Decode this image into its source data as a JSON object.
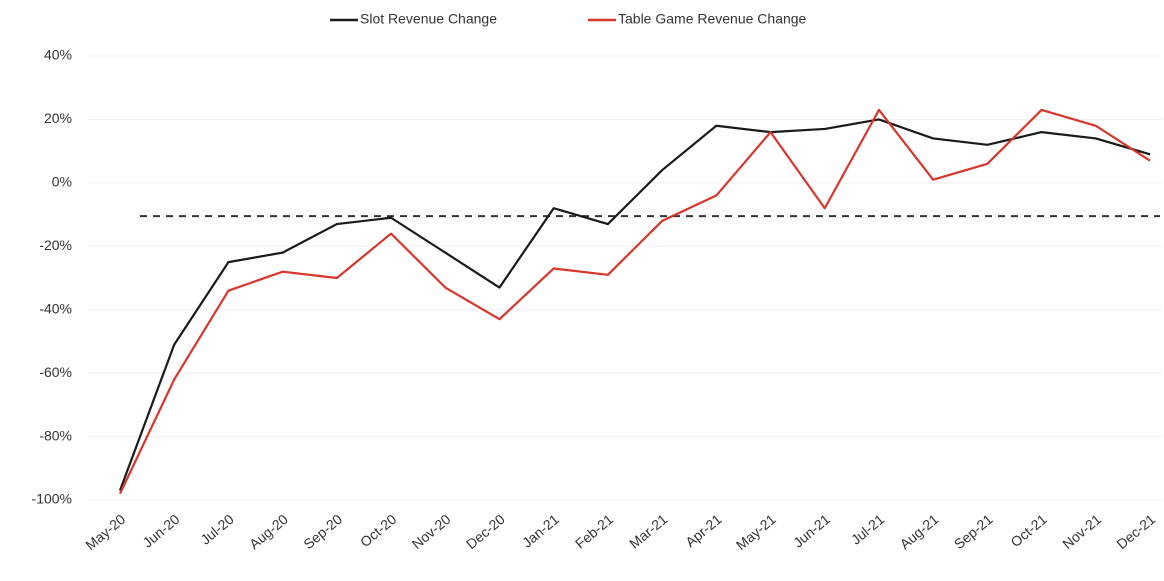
{
  "chart_data": {
    "type": "line",
    "categories": [
      "May-20",
      "Jun-20",
      "Jul-20",
      "Aug-20",
      "Sep-20",
      "Oct-20",
      "Nov-20",
      "Dec-20",
      "Jan-21",
      "Feb-21",
      "Mar-21",
      "Apr-21",
      "May-21",
      "Jun-21",
      "Jul-21",
      "Aug-21",
      "Sep-21",
      "Oct-21",
      "Nov-21",
      "Dec-21"
    ],
    "series": [
      {
        "name": "Slot Revenue Change",
        "color": "#1a1a1a",
        "values": [
          -97,
          -51,
          -25,
          -22,
          -13,
          -11,
          -22,
          -33,
          -8,
          -13,
          4,
          18,
          16,
          17,
          20,
          14,
          12,
          16,
          14,
          9
        ]
      },
      {
        "name": "Table Game Revenue Change",
        "color": "#d9352a",
        "values": [
          -98,
          -62,
          -34,
          -28,
          -30,
          -16,
          -33,
          -43,
          -27,
          -29,
          -12,
          -4,
          16,
          -8,
          23,
          1,
          6,
          23,
          18,
          7
        ]
      }
    ],
    "reference_line": -10.5,
    "ylim": [
      -100,
      40
    ],
    "yticks": [
      {
        "value": -100,
        "label": "-100%"
      },
      {
        "value": -80,
        "label": "-80%"
      },
      {
        "value": -60,
        "label": "-60%"
      },
      {
        "value": -40,
        "label": "-40%"
      },
      {
        "value": -20,
        "label": "-20%"
      },
      {
        "value": 0,
        "label": "0%"
      },
      {
        "value": 20,
        "label": "20%"
      },
      {
        "value": 40,
        "label": "40%"
      }
    ],
    "grid": true,
    "legend": "top"
  }
}
